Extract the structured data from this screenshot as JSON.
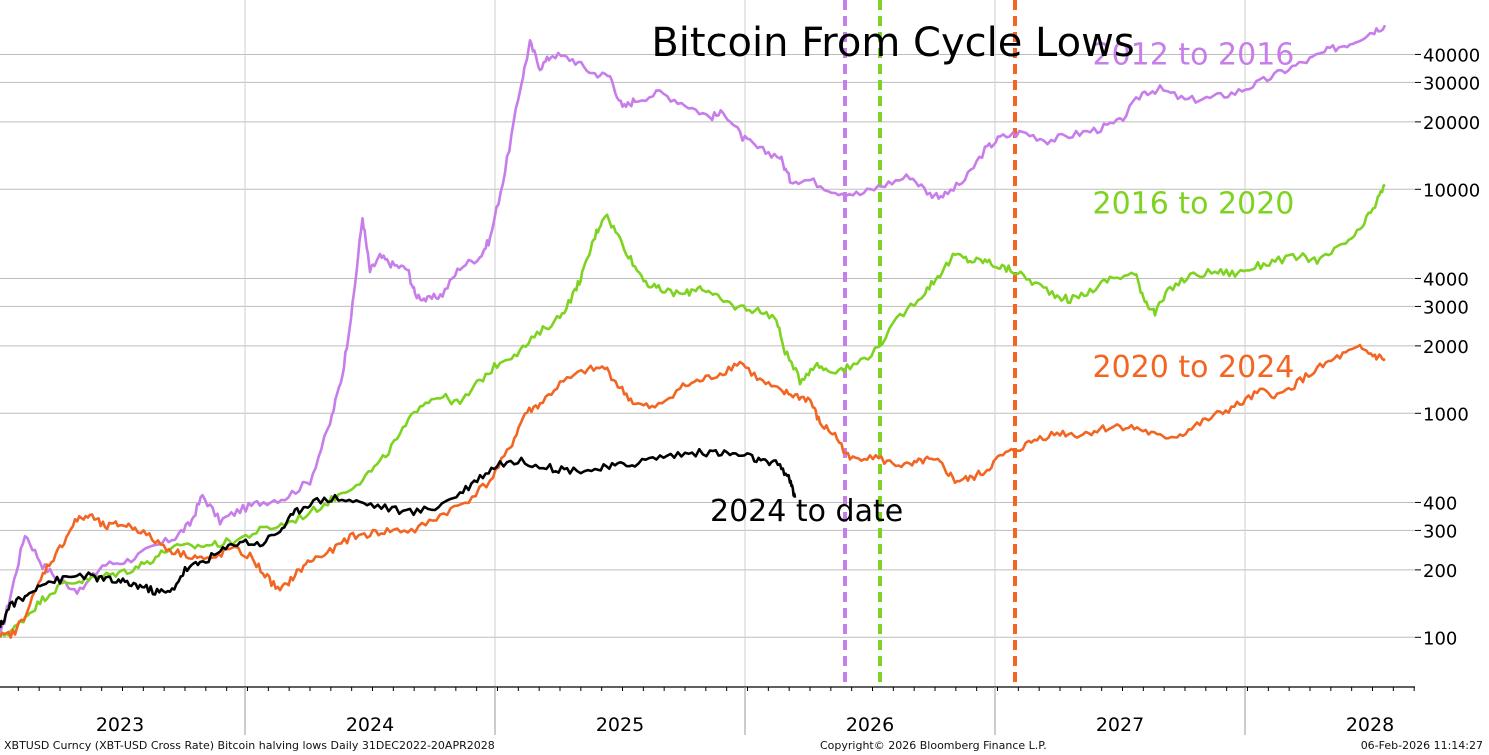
{
  "chart_data": {
    "type": "line",
    "title": "Bitcoin From Cycle Lows",
    "y_scale": "log",
    "ylim": [
      60,
      70000
    ],
    "xlim": [
      2022.76,
      2028.42
    ],
    "y_ticks": [
      100,
      200,
      300,
      400,
      1000,
      2000,
      3000,
      4000,
      10000,
      20000,
      30000,
      40000
    ],
    "y_tick_labels": [
      "100",
      "200",
      "300",
      "400",
      "1000",
      "2000",
      "3000",
      "4000",
      "10000",
      "20000",
      "30000",
      "40000"
    ],
    "x_labels": [
      {
        "label": "2023",
        "at": 2023.24
      },
      {
        "label": "2024",
        "at": 2024.24
      },
      {
        "label": "2025",
        "at": 2025.24
      },
      {
        "label": "2026",
        "at": 2026.24
      },
      {
        "label": "2027",
        "at": 2027.24
      },
      {
        "label": "2028",
        "at": 2028.24
      }
    ],
    "year_boundaries": [
      2023.74,
      2024.74,
      2025.74,
      2026.74,
      2027.74
    ],
    "grid": true,
    "series": [
      {
        "name": "2012 to 2016",
        "color": "#c77dea",
        "points": [
          [
            2022.76,
            100
          ],
          [
            2022.8,
            150
          ],
          [
            2022.86,
            290
          ],
          [
            2022.93,
            210
          ],
          [
            2023.0,
            180
          ],
          [
            2023.08,
            160
          ],
          [
            2023.17,
            210
          ],
          [
            2023.27,
            220
          ],
          [
            2023.37,
            250
          ],
          [
            2023.46,
            280
          ],
          [
            2023.52,
            320
          ],
          [
            2023.57,
            430
          ],
          [
            2023.64,
            330
          ],
          [
            2023.72,
            370
          ],
          [
            2023.8,
            400
          ],
          [
            2023.9,
            420
          ],
          [
            2024.0,
            500
          ],
          [
            2024.08,
            900
          ],
          [
            2024.13,
            1500
          ],
          [
            2024.17,
            3000
          ],
          [
            2024.21,
            7500
          ],
          [
            2024.24,
            4300
          ],
          [
            2024.28,
            5000
          ],
          [
            2024.33,
            4600
          ],
          [
            2024.39,
            4400
          ],
          [
            2024.42,
            3400
          ],
          [
            2024.47,
            3200
          ],
          [
            2024.53,
            3400
          ],
          [
            2024.6,
            4500
          ],
          [
            2024.68,
            5000
          ],
          [
            2024.72,
            6000
          ],
          [
            2024.78,
            12000
          ],
          [
            2024.84,
            28000
          ],
          [
            2024.88,
            45000
          ],
          [
            2024.92,
            35000
          ],
          [
            2024.97,
            40000
          ],
          [
            2025.05,
            38000
          ],
          [
            2025.13,
            33000
          ],
          [
            2025.2,
            32000
          ],
          [
            2025.25,
            23000
          ],
          [
            2025.3,
            25000
          ],
          [
            2025.4,
            27000
          ],
          [
            2025.5,
            24000
          ],
          [
            2025.6,
            21000
          ],
          [
            2025.66,
            22000
          ],
          [
            2025.73,
            17000
          ],
          [
            2025.8,
            15000
          ],
          [
            2025.88,
            14000
          ],
          [
            2025.92,
            11000
          ],
          [
            2026.0,
            11000
          ],
          [
            2026.1,
            9800
          ],
          [
            2026.2,
            9500
          ],
          [
            2026.3,
            10500
          ],
          [
            2026.4,
            11500
          ],
          [
            2026.48,
            9500
          ],
          [
            2026.54,
            9400
          ],
          [
            2026.62,
            11000
          ],
          [
            2026.7,
            15000
          ],
          [
            2026.76,
            17000
          ],
          [
            2026.85,
            18000
          ],
          [
            2026.95,
            16500
          ],
          [
            2027.05,
            17500
          ],
          [
            2027.15,
            18500
          ],
          [
            2027.24,
            20000
          ],
          [
            2027.33,
            27000
          ],
          [
            2027.4,
            28000
          ],
          [
            2027.5,
            25000
          ],
          [
            2027.6,
            25500
          ],
          [
            2027.7,
            27000
          ],
          [
            2027.8,
            30000
          ],
          [
            2027.9,
            34000
          ],
          [
            2028.0,
            38000
          ],
          [
            2028.08,
            42000
          ],
          [
            2028.16,
            45000
          ],
          [
            2028.24,
            50000
          ],
          [
            2028.3,
            54000
          ]
        ]
      },
      {
        "name": "2016 to 2020",
        "color": "#7ed321",
        "points": [
          [
            2022.76,
            100
          ],
          [
            2022.82,
            110
          ],
          [
            2022.88,
            130
          ],
          [
            2022.95,
            155
          ],
          [
            2023.02,
            175
          ],
          [
            2023.1,
            180
          ],
          [
            2023.2,
            190
          ],
          [
            2023.28,
            200
          ],
          [
            2023.36,
            220
          ],
          [
            2023.44,
            250
          ],
          [
            2023.54,
            255
          ],
          [
            2023.62,
            260
          ],
          [
            2023.7,
            270
          ],
          [
            2023.8,
            300
          ],
          [
            2023.9,
            320
          ],
          [
            2024.0,
            360
          ],
          [
            2024.1,
            420
          ],
          [
            2024.2,
            500
          ],
          [
            2024.28,
            600
          ],
          [
            2024.36,
            800
          ],
          [
            2024.44,
            1100
          ],
          [
            2024.52,
            1200
          ],
          [
            2024.6,
            1100
          ],
          [
            2024.68,
            1400
          ],
          [
            2024.76,
            1700
          ],
          [
            2024.84,
            1900
          ],
          [
            2024.92,
            2300
          ],
          [
            2025.0,
            2700
          ],
          [
            2025.06,
            3500
          ],
          [
            2025.1,
            4500
          ],
          [
            2025.14,
            6200
          ],
          [
            2025.18,
            7800
          ],
          [
            2025.24,
            6000
          ],
          [
            2025.3,
            4500
          ],
          [
            2025.36,
            3700
          ],
          [
            2025.42,
            3500
          ],
          [
            2025.5,
            3400
          ],
          [
            2025.56,
            3700
          ],
          [
            2025.62,
            3300
          ],
          [
            2025.7,
            3000
          ],
          [
            2025.78,
            2900
          ],
          [
            2025.86,
            2700
          ],
          [
            2025.9,
            1900
          ],
          [
            2025.96,
            1400
          ],
          [
            2026.02,
            1650
          ],
          [
            2026.08,
            1550
          ],
          [
            2026.16,
            1600
          ],
          [
            2026.26,
            1900
          ],
          [
            2026.36,
            2700
          ],
          [
            2026.46,
            3500
          ],
          [
            2026.52,
            4200
          ],
          [
            2026.58,
            5100
          ],
          [
            2026.64,
            4800
          ],
          [
            2026.7,
            4800
          ],
          [
            2026.76,
            4500
          ],
          [
            2026.82,
            4300
          ],
          [
            2026.9,
            3800
          ],
          [
            2026.98,
            3400
          ],
          [
            2027.04,
            3200
          ],
          [
            2027.12,
            3500
          ],
          [
            2027.2,
            4000
          ],
          [
            2027.3,
            4200
          ],
          [
            2027.34,
            3200
          ],
          [
            2027.38,
            2800
          ],
          [
            2027.44,
            3600
          ],
          [
            2027.52,
            4100
          ],
          [
            2027.62,
            4300
          ],
          [
            2027.7,
            4200
          ],
          [
            2027.78,
            4500
          ],
          [
            2027.86,
            4800
          ],
          [
            2027.96,
            5000
          ],
          [
            2028.04,
            4800
          ],
          [
            2028.12,
            5500
          ],
          [
            2028.2,
            6500
          ],
          [
            2028.26,
            8500
          ],
          [
            2028.3,
            10500
          ]
        ]
      },
      {
        "name": "2020 to 2024",
        "color": "#f26522",
        "points": [
          [
            2022.76,
            100
          ],
          [
            2022.82,
            105
          ],
          [
            2022.88,
            140
          ],
          [
            2022.94,
            200
          ],
          [
            2023.0,
            250
          ],
          [
            2023.06,
            330
          ],
          [
            2023.12,
            350
          ],
          [
            2023.18,
            310
          ],
          [
            2023.24,
            320
          ],
          [
            2023.3,
            310
          ],
          [
            2023.38,
            270
          ],
          [
            2023.46,
            240
          ],
          [
            2023.54,
            230
          ],
          [
            2023.6,
            220
          ],
          [
            2023.68,
            250
          ],
          [
            2023.76,
            230
          ],
          [
            2023.82,
            190
          ],
          [
            2023.88,
            160
          ],
          [
            2023.94,
            190
          ],
          [
            2024.0,
            220
          ],
          [
            2024.08,
            240
          ],
          [
            2024.16,
            280
          ],
          [
            2024.24,
            290
          ],
          [
            2024.32,
            300
          ],
          [
            2024.42,
            300
          ],
          [
            2024.52,
            350
          ],
          [
            2024.62,
            400
          ],
          [
            2024.72,
            500
          ],
          [
            2024.8,
            700
          ],
          [
            2024.86,
            1000
          ],
          [
            2024.92,
            1100
          ],
          [
            2025.0,
            1350
          ],
          [
            2025.1,
            1550
          ],
          [
            2025.18,
            1600
          ],
          [
            2025.24,
            1300
          ],
          [
            2025.3,
            1100
          ],
          [
            2025.38,
            1050
          ],
          [
            2025.48,
            1300
          ],
          [
            2025.56,
            1400
          ],
          [
            2025.64,
            1500
          ],
          [
            2025.72,
            1700
          ],
          [
            2025.8,
            1400
          ],
          [
            2025.88,
            1250
          ],
          [
            2025.94,
            1200
          ],
          [
            2026.0,
            1150
          ],
          [
            2026.04,
            900
          ],
          [
            2026.1,
            800
          ],
          [
            2026.16,
            620
          ],
          [
            2026.24,
            650
          ],
          [
            2026.32,
            600
          ],
          [
            2026.4,
            580
          ],
          [
            2026.46,
            620
          ],
          [
            2026.52,
            600
          ],
          [
            2026.58,
            500
          ],
          [
            2026.64,
            510
          ],
          [
            2026.7,
            550
          ],
          [
            2026.76,
            640
          ],
          [
            2026.84,
            700
          ],
          [
            2026.92,
            780
          ],
          [
            2027.0,
            820
          ],
          [
            2027.08,
            800
          ],
          [
            2027.16,
            850
          ],
          [
            2027.24,
            880
          ],
          [
            2027.32,
            850
          ],
          [
            2027.4,
            780
          ],
          [
            2027.48,
            800
          ],
          [
            2027.56,
            900
          ],
          [
            2027.64,
            1000
          ],
          [
            2027.72,
            1100
          ],
          [
            2027.8,
            1250
          ],
          [
            2027.88,
            1200
          ],
          [
            2027.96,
            1400
          ],
          [
            2028.04,
            1600
          ],
          [
            2028.12,
            1800
          ],
          [
            2028.2,
            1950
          ],
          [
            2028.26,
            1800
          ],
          [
            2028.3,
            1750
          ]
        ]
      },
      {
        "name": "2024 to date",
        "color": "#000000",
        "points": [
          [
            2022.76,
            110
          ],
          [
            2022.8,
            140
          ],
          [
            2022.86,
            150
          ],
          [
            2022.92,
            175
          ],
          [
            2023.0,
            180
          ],
          [
            2023.08,
            190
          ],
          [
            2023.14,
            185
          ],
          [
            2023.2,
            180
          ],
          [
            2023.26,
            175
          ],
          [
            2023.32,
            170
          ],
          [
            2023.38,
            160
          ],
          [
            2023.44,
            158
          ],
          [
            2023.5,
            200
          ],
          [
            2023.56,
            215
          ],
          [
            2023.64,
            240
          ],
          [
            2023.72,
            270
          ],
          [
            2023.8,
            260
          ],
          [
            2023.88,
            300
          ],
          [
            2023.94,
            360
          ],
          [
            2024.0,
            400
          ],
          [
            2024.1,
            420
          ],
          [
            2024.2,
            400
          ],
          [
            2024.3,
            380
          ],
          [
            2024.4,
            360
          ],
          [
            2024.5,
            380
          ],
          [
            2024.6,
            440
          ],
          [
            2024.68,
            520
          ],
          [
            2024.76,
            600
          ],
          [
            2024.86,
            610
          ],
          [
            2024.96,
            570
          ],
          [
            2025.04,
            560
          ],
          [
            2025.14,
            560
          ],
          [
            2025.22,
            580
          ],
          [
            2025.3,
            600
          ],
          [
            2025.4,
            640
          ],
          [
            2025.5,
            660
          ],
          [
            2025.6,
            670
          ],
          [
            2025.68,
            660
          ],
          [
            2025.76,
            640
          ],
          [
            2025.82,
            600
          ],
          [
            2025.88,
            590
          ],
          [
            2025.92,
            500
          ],
          [
            2025.94,
            420
          ]
        ]
      }
    ],
    "vlines": [
      {
        "x": 2026.14,
        "color": "#c77dea"
      },
      {
        "x": 2026.28,
        "color": "#7ed321"
      },
      {
        "x": 2026.82,
        "color": "#f26522"
      }
    ],
    "annotations": [
      {
        "text": "2012 to 2016",
        "color": "#c77dea",
        "x": 2027.13,
        "y": 36000
      },
      {
        "text": "2016 to 2020",
        "color": "#7ed321",
        "x": 2027.13,
        "y": 7800
      },
      {
        "text": "2020 to 2024",
        "color": "#f26522",
        "x": 2027.13,
        "y": 1450
      },
      {
        "text": "2024 to date",
        "color": "#000000",
        "x": 2025.6,
        "y": 330
      }
    ]
  },
  "footer": {
    "source": "XBTUSD Curncy (XBT-USD Cross Rate) Bitcoin halving lows Daily 31DEC2022-20APR2028",
    "copyright": "Copyright© 2026 Bloomberg Finance L.P.",
    "timestamp": "06-Feb-2026 11:14:27"
  }
}
